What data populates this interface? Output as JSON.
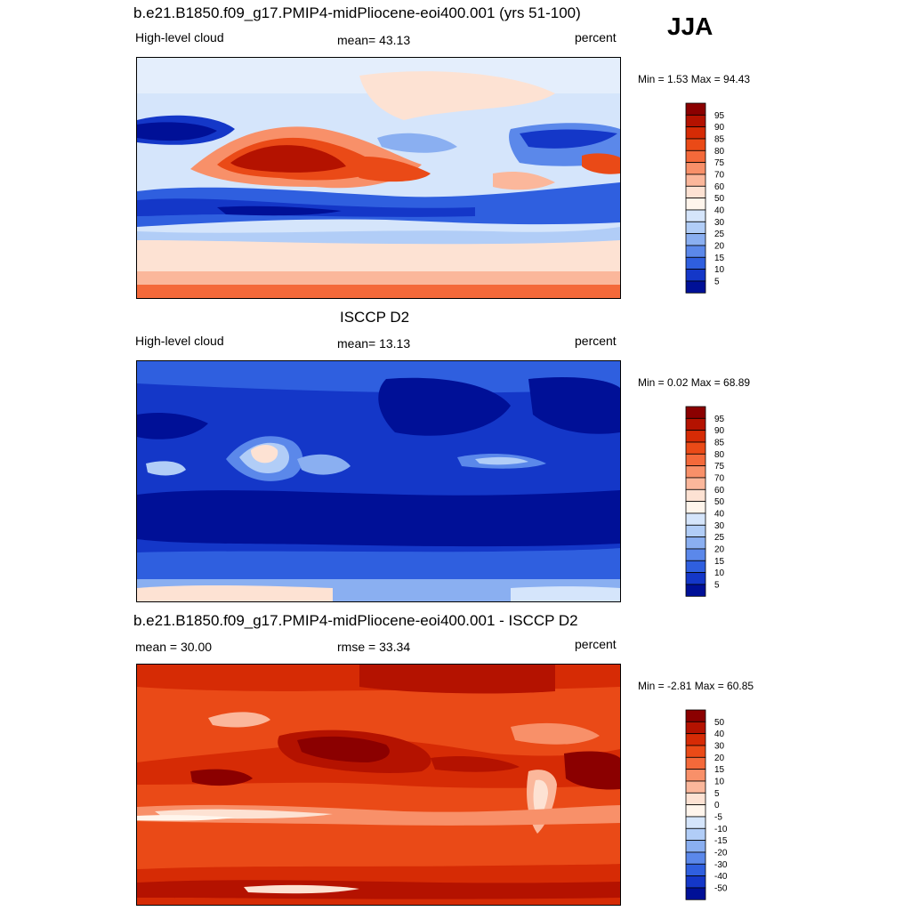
{
  "season": "JJA",
  "panels": [
    {
      "title": "b.e21.B1850.f09_g17.PMIP4-midPliocene-eoi400.001 (yrs 51-100)",
      "left_label": "High-level cloud",
      "center_label": "mean=  43.13",
      "right_label": "percent",
      "minmax": "Min =   1.53 Max =  94.43"
    },
    {
      "title": "ISCCP D2",
      "left_label": "High-level cloud",
      "center_label": "mean=  13.13",
      "right_label": "percent",
      "minmax": "Min =   0.02 Max =  68.89"
    },
    {
      "title": "b.e21.B1850.f09_g17.PMIP4-midPliocene-eoi400.001 - ISCCP D2",
      "left_label": "mean =  30.00",
      "center_label": "rmse =  33.34",
      "right_label": "percent",
      "minmax": "Min =  -2.81 Max =  60.85"
    }
  ],
  "chart_data": [
    {
      "type": "heatmap",
      "title": "b.e21.B1850.f09_g17.PMIP4-midPliocene-eoi400.001 (yrs 51-100)",
      "variable": "High-level cloud",
      "units": "percent",
      "mean": 43.13,
      "min": 1.53,
      "max": 94.43,
      "colorbar_levels": [
        "95",
        "90",
        "85",
        "80",
        "75",
        "70",
        "60",
        "50",
        "40",
        "30",
        "25",
        "20",
        "15",
        "10",
        "5"
      ],
      "colorbar_colors": [
        "#8b0000",
        "#b41200",
        "#d62b05",
        "#ea4a17",
        "#f4693a",
        "#f89069",
        "#fbb79b",
        "#fde2d3",
        "#fff5ec",
        "#d5e5fb",
        "#b1cdf7",
        "#8aaff1",
        "#5b88ea",
        "#2f5fdf",
        "#1437c8",
        "#001097"
      ]
    },
    {
      "type": "heatmap",
      "title": "ISCCP D2",
      "variable": "High-level cloud",
      "units": "percent",
      "mean": 13.13,
      "min": 0.02,
      "max": 68.89,
      "colorbar_levels": [
        "95",
        "90",
        "85",
        "80",
        "75",
        "70",
        "60",
        "50",
        "40",
        "30",
        "25",
        "20",
        "15",
        "10",
        "5"
      ],
      "colorbar_colors": [
        "#8b0000",
        "#b41200",
        "#d62b05",
        "#ea4a17",
        "#f4693a",
        "#f89069",
        "#fbb79b",
        "#fde2d3",
        "#fff5ec",
        "#d5e5fb",
        "#b1cdf7",
        "#8aaff1",
        "#5b88ea",
        "#2f5fdf",
        "#1437c8",
        "#001097"
      ]
    },
    {
      "type": "heatmap",
      "title": "b.e21.B1850.f09_g17.PMIP4-midPliocene-eoi400.001 - ISCCP D2",
      "units": "percent",
      "mean": 30.0,
      "rmse": 33.34,
      "min": -2.81,
      "max": 60.85,
      "colorbar_levels": [
        "50",
        "40",
        "30",
        "20",
        "15",
        "10",
        "5",
        "0",
        "-5",
        "-10",
        "-15",
        "-20",
        "-30",
        "-40",
        "-50"
      ],
      "colorbar_colors": [
        "#8b0000",
        "#b41200",
        "#d62b05",
        "#ea4a17",
        "#f4693a",
        "#f89069",
        "#fbb79b",
        "#fde2d3",
        "#fff5ec",
        "#d5e5fb",
        "#b1cdf7",
        "#8aaff1",
        "#5b88ea",
        "#2f5fdf",
        "#1437c8",
        "#001097"
      ]
    }
  ]
}
